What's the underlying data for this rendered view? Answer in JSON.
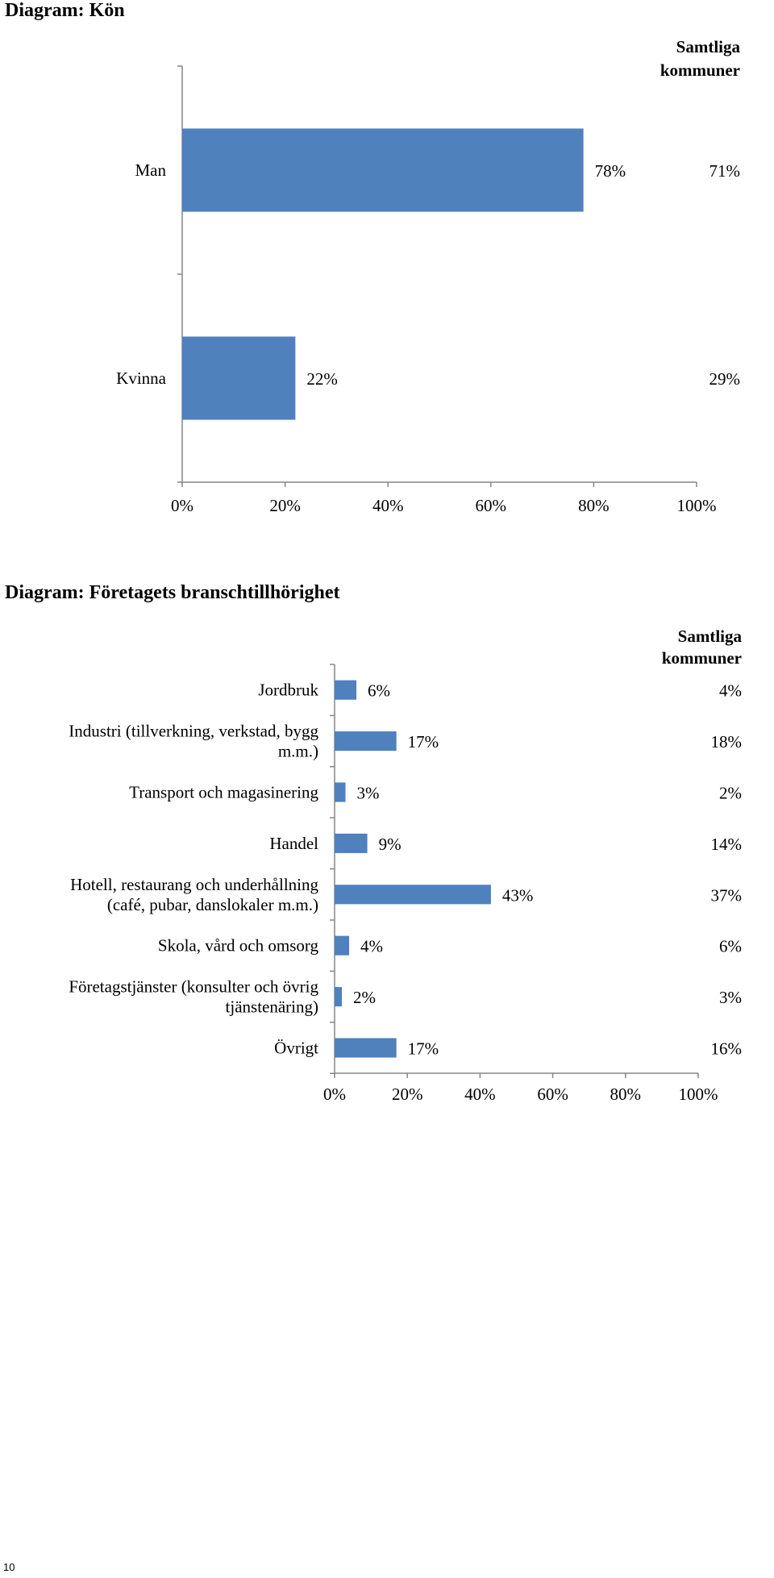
{
  "page_number": "10",
  "chart_data": [
    {
      "type": "bar",
      "orientation": "horizontal",
      "title": "Diagram: Kön",
      "comparison_header": [
        "Samtliga",
        "kommuner"
      ],
      "categories": [
        [
          "Man"
        ],
        [
          "Kvinna"
        ]
      ],
      "values": [
        78,
        22
      ],
      "value_labels": [
        "78%",
        "22%"
      ],
      "comparison_values": [
        71,
        29
      ],
      "comparison_labels": [
        "71%",
        "29%"
      ],
      "xlim": [
        0,
        100
      ],
      "ticks": [
        0,
        20,
        40,
        60,
        80,
        100
      ],
      "tick_labels": [
        "0%",
        "20%",
        "40%",
        "60%",
        "80%",
        "100%"
      ],
      "bar_color": "#4f81bd",
      "grid": false
    },
    {
      "type": "bar",
      "orientation": "horizontal",
      "title": "Diagram: Företagets branschtillhörighet",
      "comparison_header": [
        "Samtliga",
        "kommuner"
      ],
      "categories": [
        [
          "Jordbruk"
        ],
        [
          "Industri (tillverkning, verkstad, bygg",
          "m.m.)"
        ],
        [
          "Transport och magasinering"
        ],
        [
          "Handel"
        ],
        [
          "Hotell, restaurang och underhållning",
          "(café, pubar, danslokaler m.m.)"
        ],
        [
          "Skola, vård och omsorg"
        ],
        [
          "Företagstjänster (konsulter och övrig",
          "tjänstenäring)"
        ],
        [
          "Övrigt"
        ]
      ],
      "values": [
        6,
        17,
        3,
        9,
        43,
        4,
        2,
        17
      ],
      "value_labels": [
        "6%",
        "17%",
        "3%",
        "9%",
        "43%",
        "4%",
        "2%",
        "17%"
      ],
      "comparison_values": [
        4,
        18,
        2,
        14,
        37,
        6,
        3,
        16
      ],
      "comparison_labels": [
        "4%",
        "18%",
        "2%",
        "14%",
        "37%",
        "6%",
        "3%",
        "16%"
      ],
      "xlim": [
        0,
        100
      ],
      "ticks": [
        0,
        20,
        40,
        60,
        80,
        100
      ],
      "tick_labels": [
        "0%",
        "20%",
        "40%",
        "60%",
        "80%",
        "100%"
      ],
      "bar_color": "#4f81bd",
      "grid": false
    }
  ]
}
